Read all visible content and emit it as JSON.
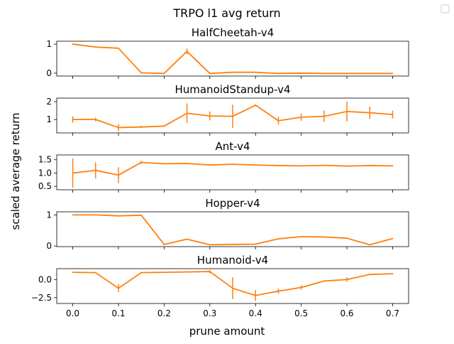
{
  "figure": {
    "suptitle": "TRPO l1 avg return",
    "ylabel": "scaled average return",
    "xlabel": "prune amount"
  },
  "colors": {
    "line": "#ff7f0e",
    "errorbar": "#ff7f0e",
    "axes": "#000000",
    "background": "#ffffff",
    "legend_border": "#cccccc"
  },
  "chart_data": [
    {
      "type": "line",
      "title": "HalfCheetah-v4",
      "x": [
        0.0,
        0.05,
        0.1,
        0.15,
        0.2,
        0.25,
        0.3,
        0.35,
        0.4,
        0.45,
        0.5,
        0.55,
        0.6,
        0.65,
        0.7
      ],
      "values": [
        1.0,
        0.9,
        0.86,
        0.01,
        -0.01,
        0.75,
        -0.01,
        0.03,
        0.03,
        -0.01,
        0.0,
        -0.01,
        -0.01,
        -0.01,
        -0.01
      ],
      "errors": [
        0.01,
        0.01,
        0.01,
        0.02,
        0.01,
        0.1,
        0.01,
        0.01,
        0.01,
        0.01,
        0.01,
        0.01,
        0.01,
        0.01,
        0.01
      ],
      "ylim": [
        -0.1,
        1.1
      ],
      "yticks": [
        0,
        1
      ],
      "ytick_labels": [
        "0",
        "1"
      ]
    },
    {
      "type": "line",
      "title": "HumanoidStandup-v4",
      "x": [
        0.0,
        0.05,
        0.1,
        0.15,
        0.2,
        0.25,
        0.3,
        0.35,
        0.4,
        0.45,
        0.5,
        0.55,
        0.6,
        0.65,
        0.7
      ],
      "values": [
        1.0,
        1.0,
        0.55,
        0.58,
        0.63,
        1.35,
        1.2,
        1.18,
        1.8,
        0.93,
        1.13,
        1.18,
        1.45,
        1.38,
        1.28
      ],
      "errors": [
        0.18,
        0.1,
        0.2,
        0.06,
        0.03,
        0.55,
        0.25,
        0.65,
        0.05,
        0.22,
        0.2,
        0.32,
        0.55,
        0.35,
        0.22
      ],
      "ylim": [
        0.25,
        2.2
      ],
      "yticks": [
        1,
        2
      ],
      "ytick_labels": [
        "1",
        "2"
      ]
    },
    {
      "type": "line",
      "title": "Ant-v4",
      "x": [
        0.0,
        0.05,
        0.1,
        0.15,
        0.2,
        0.25,
        0.3,
        0.35,
        0.4,
        0.45,
        0.5,
        0.55,
        0.6,
        0.65,
        0.7
      ],
      "values": [
        1.0,
        1.1,
        0.92,
        1.4,
        1.35,
        1.36,
        1.3,
        1.33,
        1.3,
        1.28,
        1.27,
        1.29,
        1.26,
        1.28,
        1.27
      ],
      "errors": [
        0.55,
        0.3,
        0.3,
        0.06,
        0.02,
        0.02,
        0.02,
        0.02,
        0.02,
        0.02,
        0.02,
        0.02,
        0.02,
        0.02,
        0.02
      ],
      "ylim": [
        0.37,
        1.68
      ],
      "yticks": [
        0.5,
        1.0,
        1.5
      ],
      "ytick_labels": [
        "0.5",
        "1.0",
        "1.5"
      ]
    },
    {
      "type": "line",
      "title": "Hopper-v4",
      "x": [
        0.0,
        0.05,
        0.1,
        0.15,
        0.2,
        0.25,
        0.3,
        0.35,
        0.4,
        0.45,
        0.5,
        0.55,
        0.6,
        0.65,
        0.7
      ],
      "values": [
        1.0,
        1.0,
        0.97,
        0.99,
        0.05,
        0.22,
        0.04,
        0.05,
        0.06,
        0.23,
        0.3,
        0.29,
        0.25,
        0.04,
        0.24
      ],
      "errors": [
        0.01,
        0.01,
        0.01,
        0.01,
        0.01,
        0.01,
        0.01,
        0.01,
        0.01,
        0.01,
        0.01,
        0.01,
        0.01,
        0.01,
        0.01
      ],
      "ylim": [
        -0.02,
        1.1
      ],
      "yticks": [
        0,
        1
      ],
      "ytick_labels": [
        "0",
        "1"
      ]
    },
    {
      "type": "line",
      "title": "Humanoid-v4",
      "x": [
        0.0,
        0.05,
        0.1,
        0.15,
        0.2,
        0.25,
        0.3,
        0.35,
        0.4,
        0.45,
        0.5,
        0.55,
        0.6,
        0.65,
        0.7
      ],
      "values": [
        1.0,
        0.95,
        -1.2,
        0.95,
        1.0,
        1.05,
        1.1,
        -1.2,
        -2.2,
        -1.6,
        -1.1,
        -0.2,
        0.0,
        0.7,
        0.8
      ],
      "errors": [
        0.05,
        0.05,
        0.55,
        0.05,
        0.05,
        0.05,
        0.25,
        1.5,
        0.75,
        0.35,
        0.3,
        0.1,
        0.3,
        0.1,
        0.1
      ],
      "xlim": [
        -0.035,
        0.735
      ],
      "ylim": [
        -3.3,
        1.5
      ],
      "yticks": [
        0.0,
        -2.5
      ],
      "ytick_labels": [
        "0.0",
        "−2.5"
      ],
      "xticks": [
        0.0,
        0.1,
        0.2,
        0.3,
        0.4,
        0.5,
        0.6,
        0.7
      ],
      "xtick_labels": [
        "0.0",
        "0.1",
        "0.2",
        "0.3",
        "0.4",
        "0.5",
        "0.6",
        "0.7"
      ]
    }
  ]
}
